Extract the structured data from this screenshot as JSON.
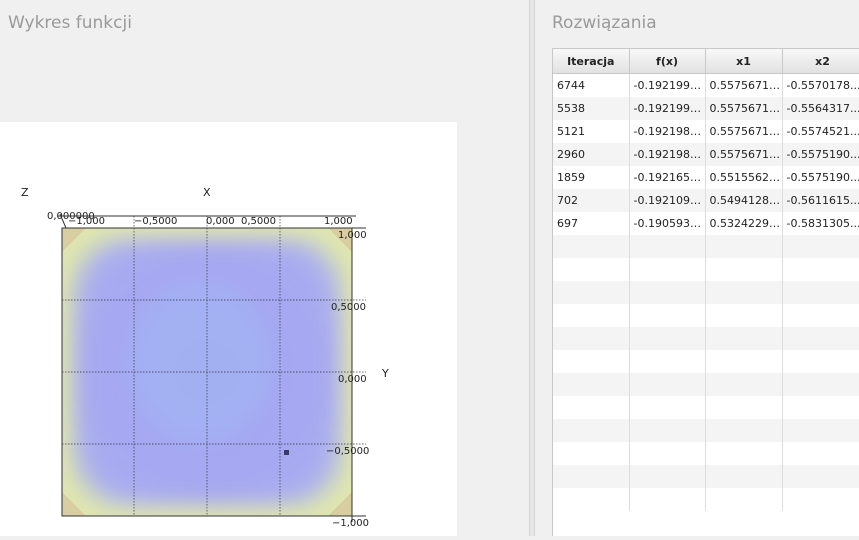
{
  "left_panel": {
    "title": "Wykres funkcji"
  },
  "right_panel": {
    "title": "Rozwiązania"
  },
  "plot": {
    "z_label": "Z",
    "x_label": "X",
    "y_label": "Y",
    "z_tick": "0,000000",
    "x_ticks": [
      "−1,000",
      "−0,5000",
      "0,000",
      "0,5000",
      "1,000"
    ],
    "y_ticks": [
      "1,000",
      "0,5000",
      "0,000",
      "−0,5000",
      "−1,000"
    ],
    "colors": {
      "surface": "#a7a8f0",
      "edge": "#e8eaa0",
      "grid": "#333344",
      "marker": "#3a3a6a"
    }
  },
  "table": {
    "columns": [
      "Iteracja",
      "f(x)",
      "x1",
      "x2"
    ],
    "rows": [
      [
        "6744",
        "-0.1921991...",
        "0.55756719...",
        "-0.5570178..."
      ],
      [
        "5538",
        "-0.1921990...",
        "0.55756719...",
        "-0.5564317..."
      ],
      [
        "5121",
        "-0.1921986...",
        "0.55756719...",
        "-0.5574521..."
      ],
      [
        "2960",
        "-0.1921985...",
        "0.55756719...",
        "-0.5575190..."
      ],
      [
        "1859",
        "-0.1921658...",
        "0.55155621...",
        "-0.5575190..."
      ],
      [
        "702",
        "-0.1921096...",
        "0.54941280...",
        "-0.5611615..."
      ],
      [
        "697",
        "-0.1905939...",
        "0.53242299...",
        "-0.5831305..."
      ]
    ]
  }
}
